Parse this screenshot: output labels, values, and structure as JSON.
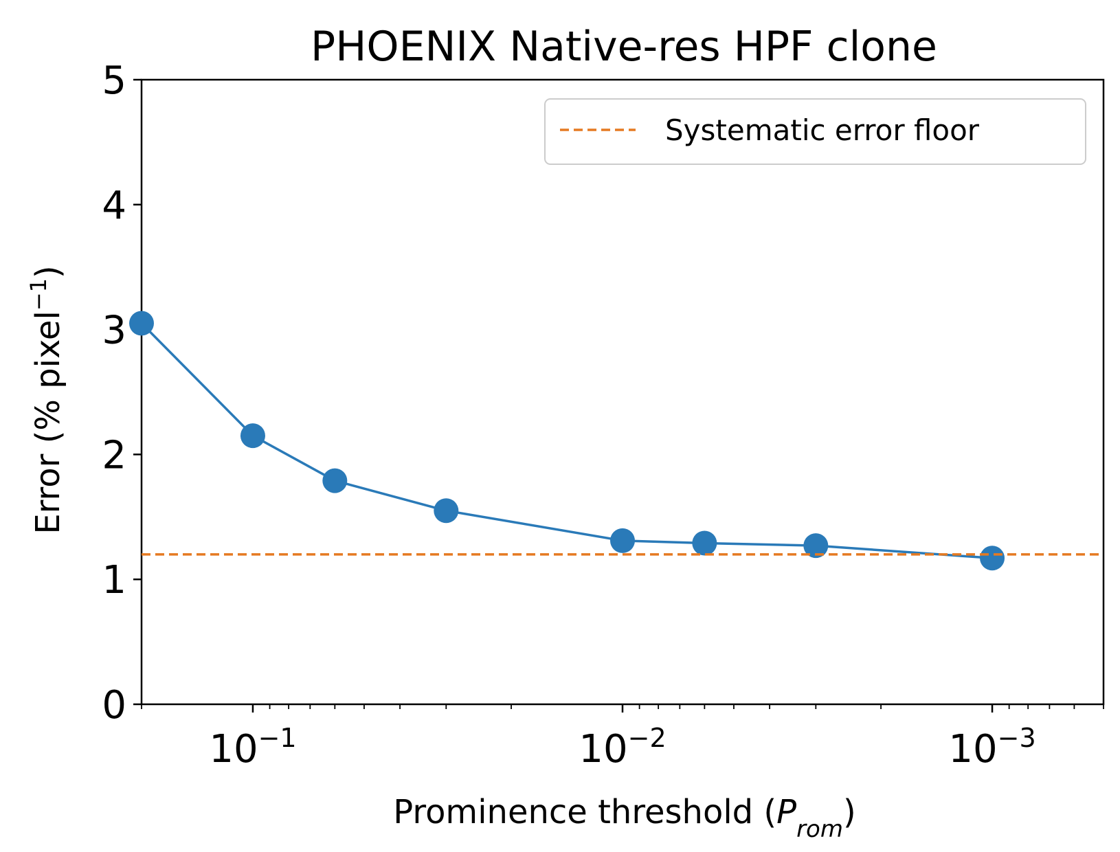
{
  "chart_data": {
    "type": "line",
    "title": "PHOENIX Native-res HPF clone",
    "xlabel": "Prominence threshold (P_rom)",
    "xlabel_parts": {
      "main": "Prominence threshold (",
      "symbol": "P",
      "subscript": "rom",
      "close": ")"
    },
    "ylabel": "Error (% pixel⁻¹)",
    "ylabel_parts": {
      "main": "Error (% pixel",
      "superscript": "−1",
      "close": ")"
    },
    "x_scale": "log",
    "x_inverted": true,
    "xlim": [
      0.2,
      0.0005
    ],
    "ylim": [
      0,
      5
    ],
    "y_ticks": [
      {
        "value": 0,
        "label": "0"
      },
      {
        "value": 1,
        "label": "1"
      },
      {
        "value": 2,
        "label": "2"
      },
      {
        "value": 3,
        "label": "3"
      },
      {
        "value": 4,
        "label": "4"
      },
      {
        "value": 5,
        "label": "5"
      }
    ],
    "x_major_ticks": [
      {
        "value": 0.1,
        "base": "10",
        "exponent": "−1"
      },
      {
        "value": 0.01,
        "base": "10",
        "exponent": "−2"
      },
      {
        "value": 0.001,
        "base": "10",
        "exponent": "−3"
      }
    ],
    "grid": false,
    "legend_position": "top-right",
    "series": [
      {
        "name": "",
        "style": "line-markers",
        "color": "#2a7ab8",
        "x": [
          0.2,
          0.1,
          0.06,
          0.03,
          0.01,
          0.006,
          0.003,
          0.001
        ],
        "y": [
          3.05,
          2.15,
          1.79,
          1.55,
          1.31,
          1.29,
          1.27,
          1.17
        ]
      },
      {
        "name": "Systematic error floor",
        "style": "dashed-hline",
        "color": "#e57a22",
        "y": 1.2
      }
    ]
  }
}
